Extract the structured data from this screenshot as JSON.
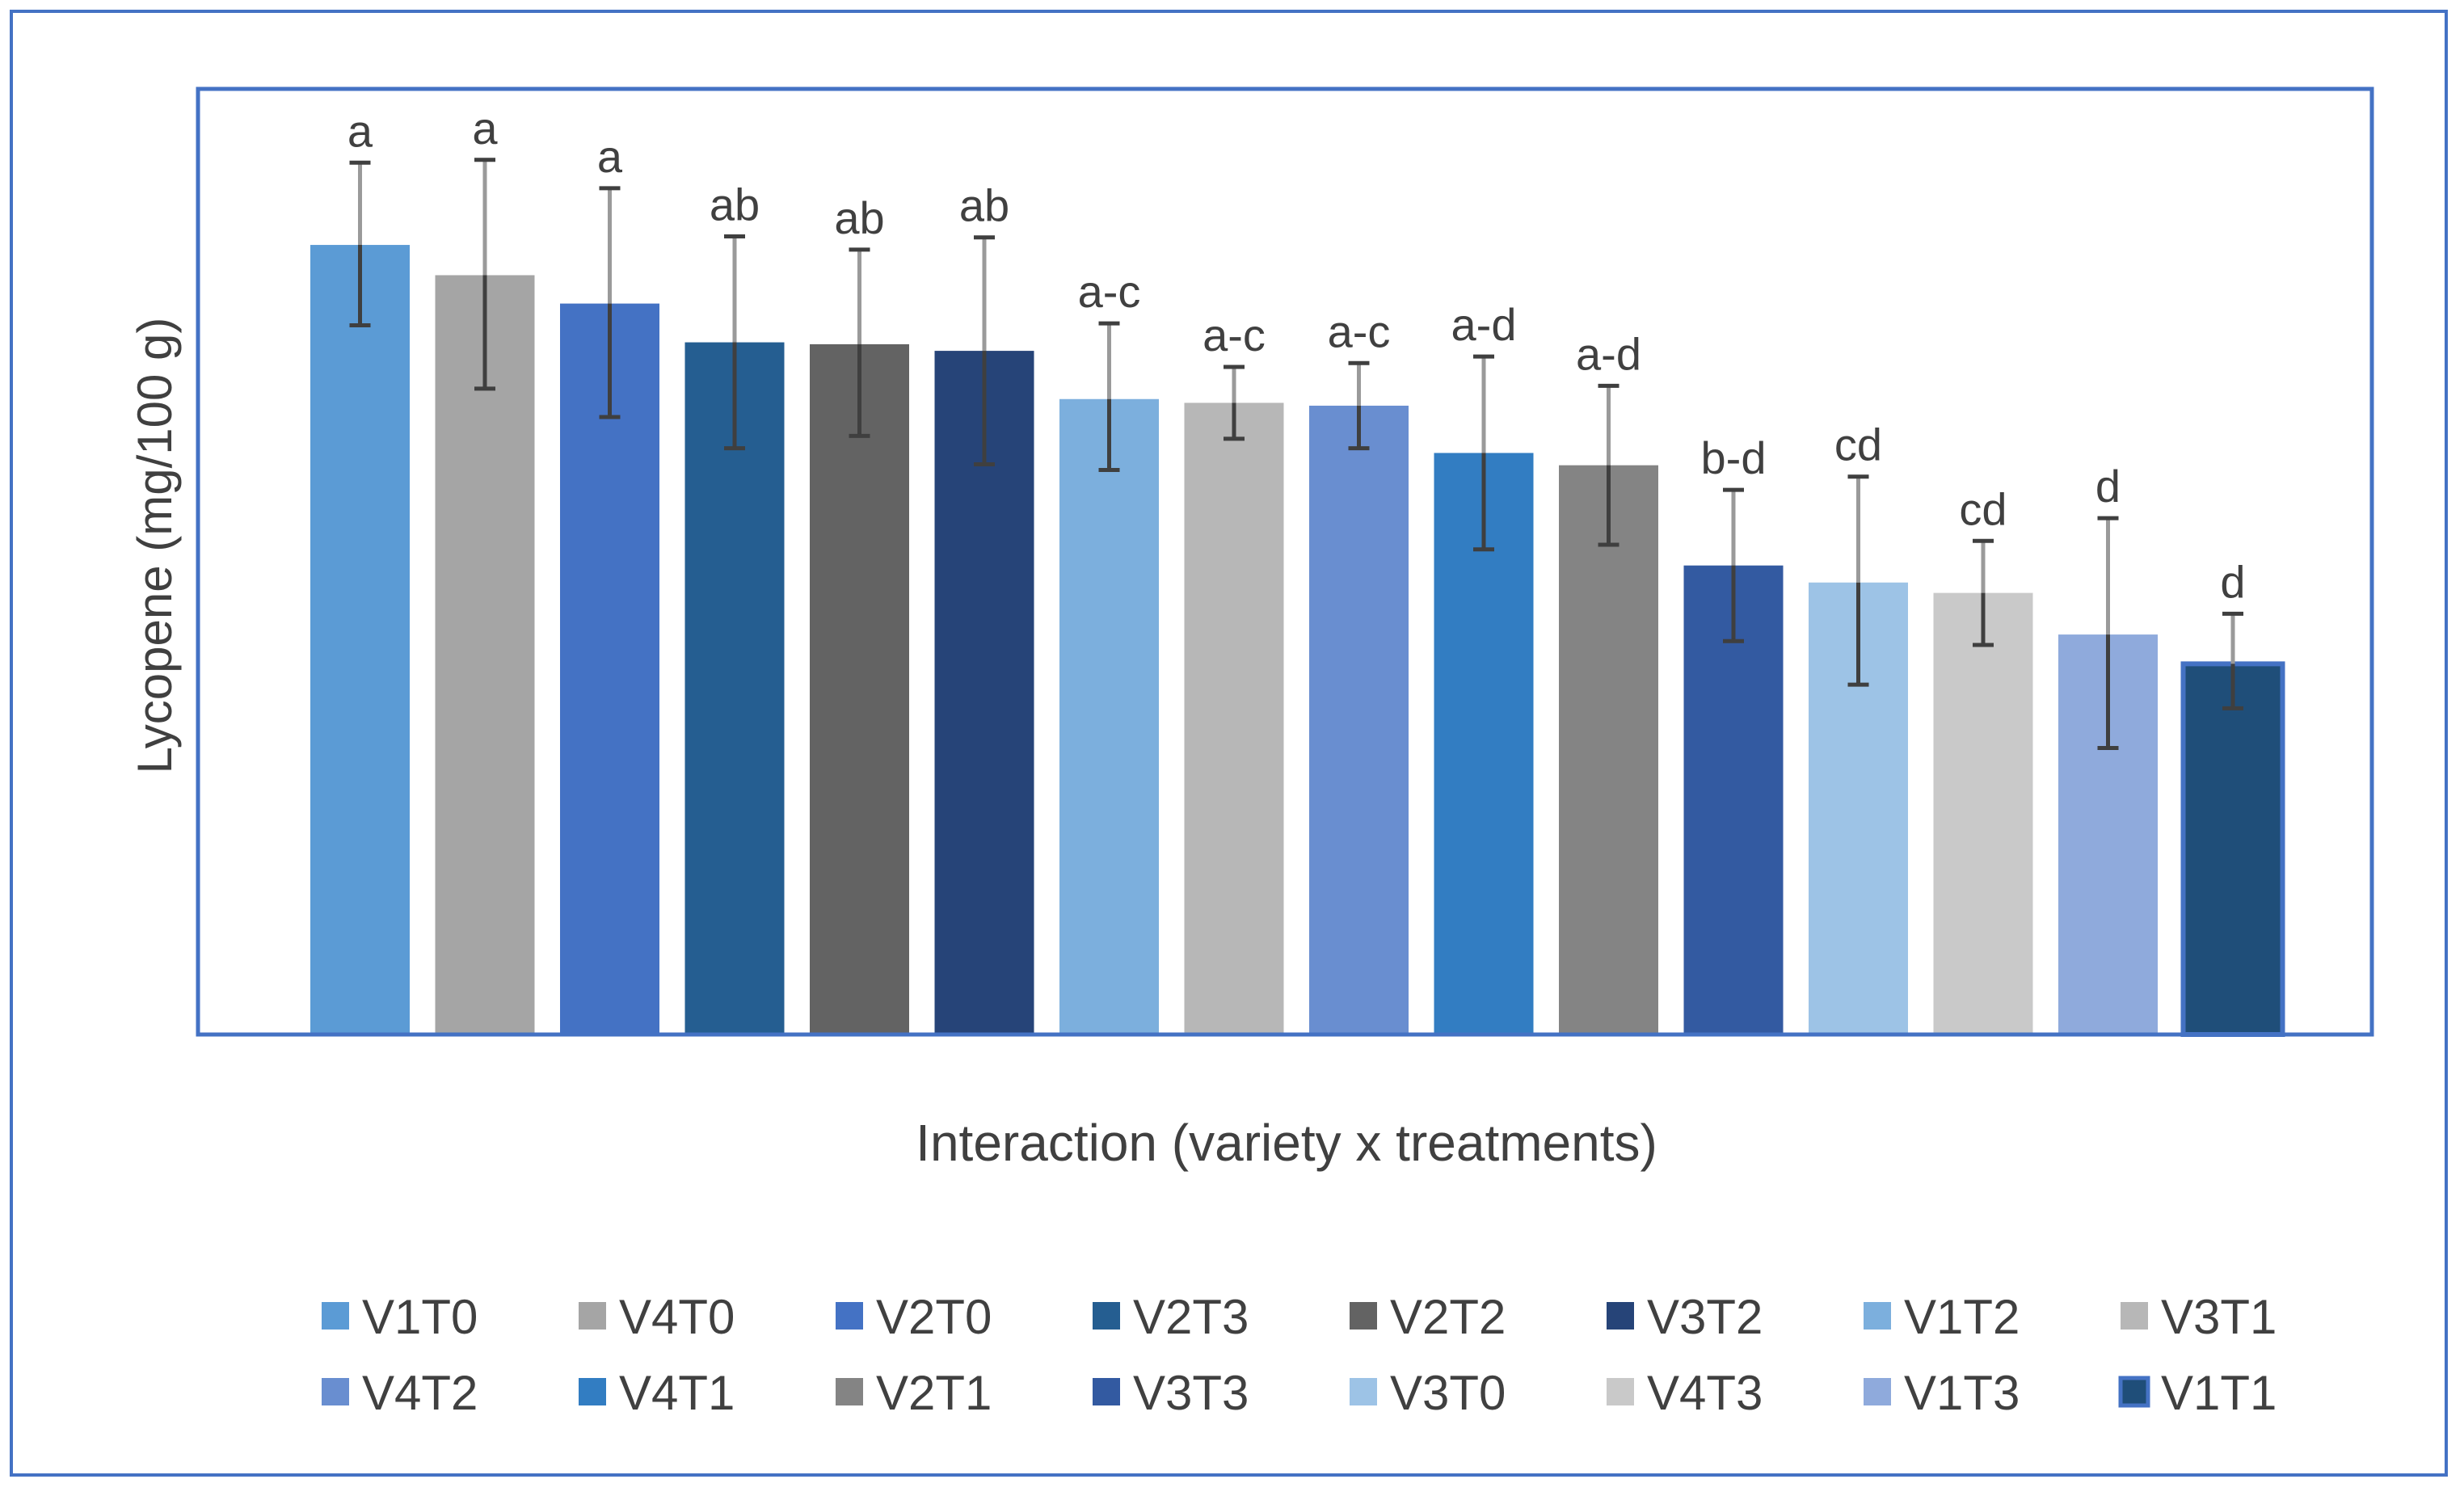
{
  "chart_data": {
    "type": "bar",
    "title": "",
    "xlabel": "Interaction (variety x treatments)",
    "ylabel": "Lycopene (mg/100  g)",
    "ylim": [
      0,
      100
    ],
    "grid": false,
    "legend_position": "bottom",
    "categories": [
      "V1T0",
      "V4T0",
      "V2T0",
      "V2T3",
      "V2T2",
      "V3T2",
      "V1T2",
      "V3T1",
      "V4T2",
      "V4T1",
      "V2T1",
      "V3T3",
      "V3T0",
      "V4T3",
      "V1T3",
      "V1T1"
    ],
    "values": [
      83.5,
      80.3,
      77.3,
      73.2,
      73.0,
      72.3,
      67.2,
      66.8,
      66.5,
      61.5,
      60.2,
      49.6,
      47.8,
      46.7,
      42.3,
      39.2
    ],
    "error_low": [
      8.5,
      12.0,
      12.0,
      11.2,
      9.7,
      12.0,
      7.5,
      3.8,
      4.5,
      10.2,
      8.4,
      8.0,
      10.8,
      5.5,
      12.0,
      4.7
    ],
    "error_high": [
      8.7,
      12.2,
      12.2,
      11.2,
      10.0,
      12.0,
      8.0,
      3.8,
      4.5,
      10.2,
      8.4,
      8.0,
      11.2,
      5.5,
      12.3,
      5.3
    ],
    "significance_labels": [
      "a",
      "a",
      "a",
      "ab",
      "ab",
      "ab",
      "a-c",
      "a-c",
      "a-c",
      "a-d",
      "a-d",
      "b-d",
      "cd",
      "cd",
      "d",
      "d"
    ],
    "colors": [
      "#5b9bd5",
      "#a5a5a5",
      "#4472c4",
      "#255e91",
      "#636363",
      "#264478",
      "#7cafdd",
      "#b7b7b7",
      "#698ed0",
      "#327dc2",
      "#848484",
      "#335aa1",
      "#9dc3e6",
      "#c9c9c9",
      "#8faadc",
      "#1f4e79"
    ]
  }
}
